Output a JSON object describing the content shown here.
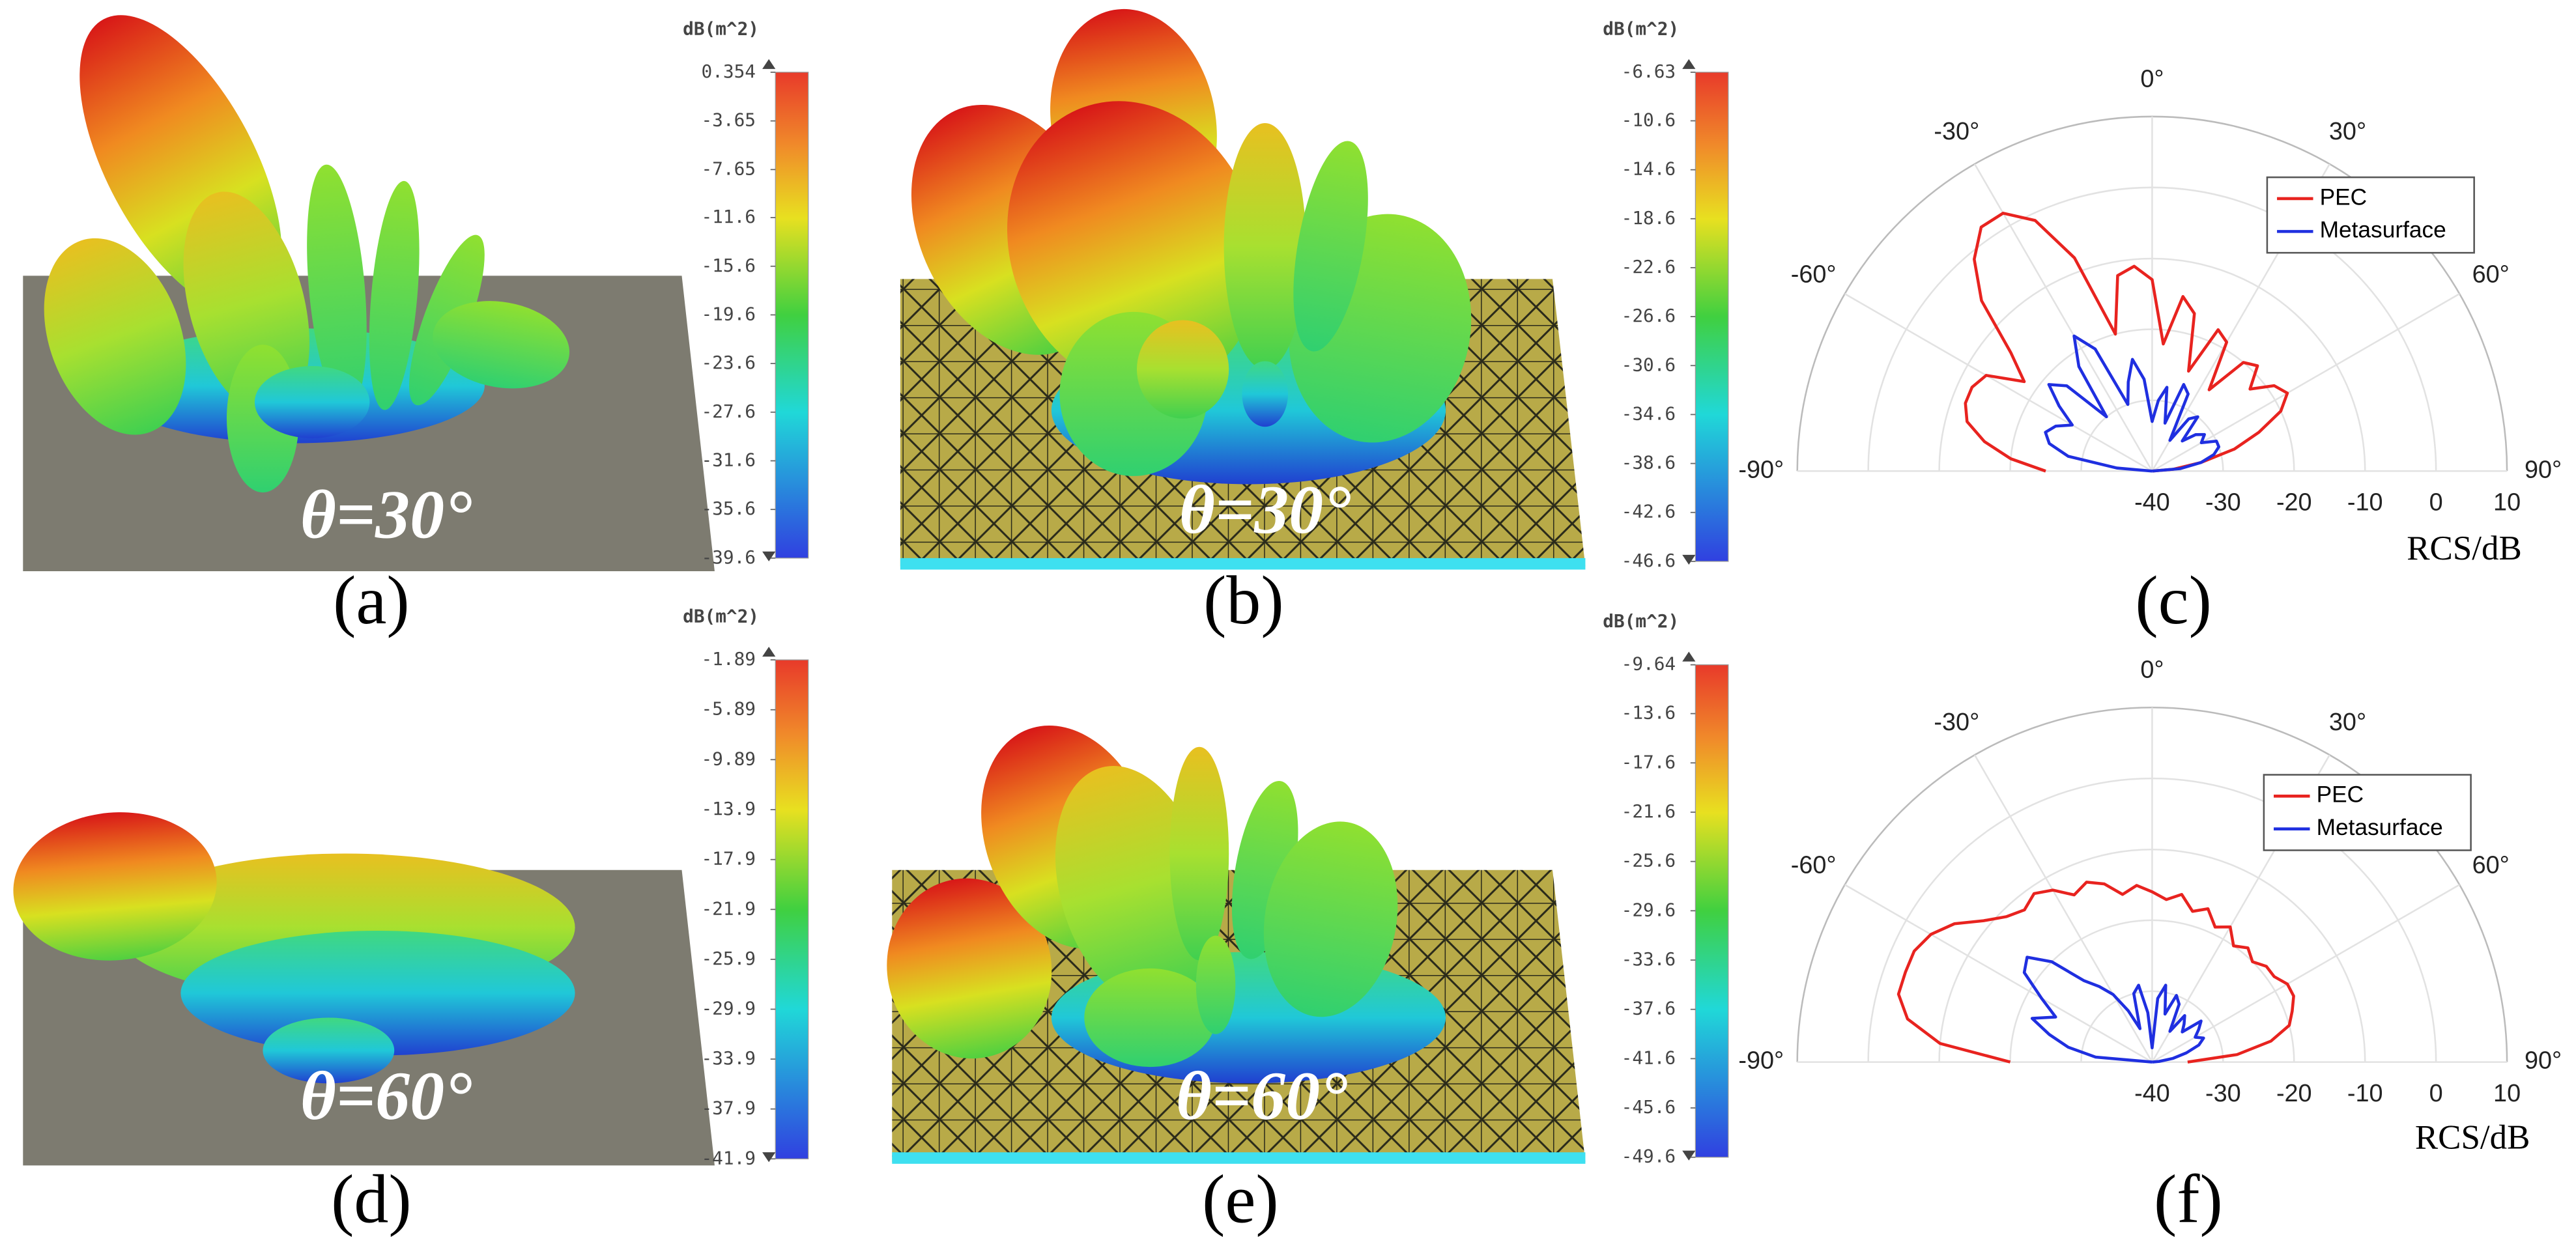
{
  "chart_data": [
    {
      "type": "surface3d",
      "caption": "(a)",
      "annotation": "θ=30°",
      "colorbar_label": "dB(m^2)",
      "clim": [
        -39.6,
        0.354
      ],
      "cticks": [
        0.354,
        -3.65,
        -7.65,
        -11.6,
        -15.6,
        -19.6,
        -23.6,
        -27.6,
        -31.6,
        -35.6,
        -39.6
      ]
    },
    {
      "type": "surface3d",
      "caption": "(b)",
      "annotation": "θ=30°",
      "colorbar_label": "dB(m^2)",
      "clim": [
        -46.6,
        -6.63
      ],
      "cticks": [
        -6.63,
        -10.6,
        -14.6,
        -18.6,
        -22.6,
        -26.6,
        -30.6,
        -34.6,
        -38.6,
        -42.6,
        -46.6
      ]
    },
    {
      "type": "polar",
      "caption": "(c)",
      "r_label": "RCS/dB",
      "legend": "upper right",
      "x": [
        -90,
        -85,
        -80,
        -75,
        -70,
        -65,
        -60,
        -55,
        -50,
        -45,
        -40,
        -35,
        -30,
        -25,
        -20,
        -15,
        -10,
        -5,
        0,
        5,
        10,
        15,
        20,
        25,
        30,
        35,
        40,
        45,
        50,
        55,
        60,
        65,
        70,
        75,
        80,
        85,
        90
      ],
      "thetaticks": [
        {
          "value": -90,
          "label": "-90°"
        },
        {
          "value": -60,
          "label": "-60°"
        },
        {
          "value": -30,
          "label": "-30°"
        },
        {
          "value": 0,
          "label": "0°"
        },
        {
          "value": 30,
          "label": "30°"
        },
        {
          "value": 60,
          "label": "60°"
        },
        {
          "value": 90,
          "label": "90°"
        }
      ],
      "rlim": [
        -40,
        10
      ],
      "rticks": [
        -40,
        -30,
        -20,
        -10,
        0,
        10
      ],
      "series": [
        {
          "name": "PEC",
          "color": "#e8231f",
          "values": [
            -25,
            -20,
            -16,
            -13,
            -12,
            -12,
            -13,
            -18,
            -14,
            -6,
            -1,
            2,
            2,
            -1,
            -8,
            -20,
            -12,
            -11,
            -13,
            -22,
            -15,
            -17,
            -25,
            -18,
            -19,
            -26,
            -20,
            -19,
            -22,
            -19,
            -18,
            -20,
            -24,
            -28,
            -33,
            -37,
            -40
          ]
        },
        {
          "name": "Metasurface",
          "color": "#1f2fe0",
          "values": [
            -40,
            -35,
            -28,
            -25,
            -24,
            -25,
            -27,
            -24,
            -21,
            -23,
            -30,
            -22,
            -18,
            -21,
            -30,
            -27,
            -24,
            -27,
            -33,
            -30,
            -28,
            -33,
            -27,
            -28,
            -35,
            -31,
            -30,
            -34,
            -32,
            -31,
            -32,
            -30,
            -30,
            -31,
            -33,
            -36,
            -40
          ]
        }
      ]
    },
    {
      "type": "surface3d",
      "caption": "(d)",
      "annotation": "θ=60°",
      "colorbar_label": "dB(m^2)",
      "clim": [
        -41.9,
        -1.89
      ],
      "cticks": [
        -1.89,
        -5.89,
        -9.89,
        -13.9,
        -17.9,
        -21.9,
        -25.9,
        -29.9,
        -33.9,
        -37.9,
        -41.9
      ]
    },
    {
      "type": "surface3d",
      "caption": "(e)",
      "annotation": "θ=60°",
      "colorbar_label": "dB(m^2)",
      "clim": [
        -49.6,
        -9.64
      ],
      "cticks": [
        -9.64,
        -13.6,
        -17.6,
        -21.6,
        -25.6,
        -29.6,
        -33.6,
        -37.6,
        -41.6,
        -45.6,
        -49.6
      ]
    },
    {
      "type": "polar",
      "caption": "(f)",
      "r_label": "RCS/dB",
      "legend": "upper right",
      "x": [
        -90,
        -85,
        -80,
        -75,
        -70,
        -65,
        -60,
        -55,
        -50,
        -45,
        -40,
        -35,
        -30,
        -25,
        -20,
        -15,
        -10,
        -5,
        0,
        5,
        10,
        15,
        20,
        25,
        30,
        35,
        40,
        45,
        50,
        55,
        60,
        65,
        70,
        75,
        80,
        85,
        90
      ],
      "thetaticks": [
        {
          "value": -90,
          "label": "-90°"
        },
        {
          "value": -60,
          "label": "-60°"
        },
        {
          "value": -30,
          "label": "-30°"
        },
        {
          "value": 0,
          "label": "0°"
        },
        {
          "value": 30,
          "label": "30°"
        },
        {
          "value": 60,
          "label": "60°"
        },
        {
          "value": 90,
          "label": "90°"
        }
      ],
      "rlim": [
        -40,
        10
      ],
      "rticks": [
        -40,
        -30,
        -20,
        -10,
        0,
        10
      ],
      "series": [
        {
          "name": "PEC",
          "color": "#e8231f",
          "values": [
            -20,
            -10,
            -5,
            -3,
            -3,
            -3,
            -4,
            -6,
            -9,
            -11,
            -12,
            -11,
            -12,
            -14,
            -13,
            -14,
            -16,
            -15,
            -16,
            -17,
            -16,
            -18,
            -17,
            -19,
            -18,
            -20,
            -19,
            -20,
            -19,
            -19,
            -18,
            -18,
            -19,
            -20,
            -23,
            -28,
            -35
          ]
        },
        {
          "name": "Metasurface",
          "color": "#1f2fe0",
          "values": [
            -40,
            -32,
            -28,
            -25,
            -22,
            -25,
            -22,
            -18,
            -17,
            -20,
            -25,
            -27,
            -29,
            -32,
            -35,
            -30,
            -29,
            -33,
            -38,
            -31,
            -29,
            -33,
            -30,
            -31,
            -35,
            -32,
            -33,
            -34,
            -31,
            -32,
            -33,
            -32,
            -33,
            -35,
            -37,
            -39,
            -40
          ]
        }
      ]
    }
  ]
}
